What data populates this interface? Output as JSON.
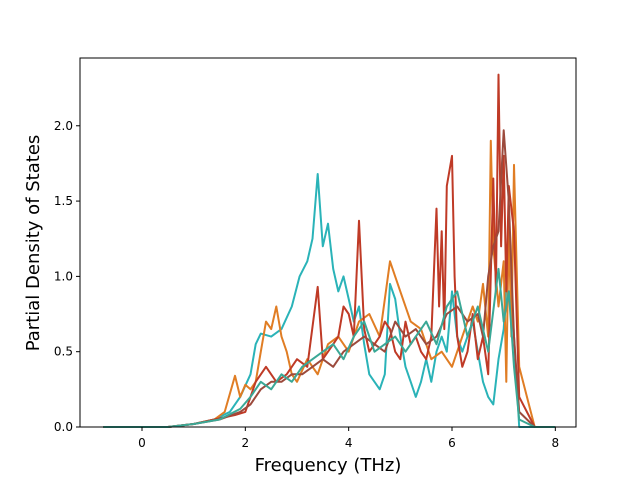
{
  "chart_data": {
    "type": "line",
    "title": "",
    "xlabel": "Frequency (THz)",
    "ylabel": "Partial Density of States",
    "xlim": [
      -1.2,
      8.4
    ],
    "ylim": [
      0.0,
      2.45
    ],
    "xticks": [
      0,
      2,
      4,
      6,
      8
    ],
    "yticks": [
      0.0,
      0.5,
      1.0,
      1.5,
      2.0
    ],
    "xtick_labels": [
      "0",
      "2",
      "4",
      "6",
      "8"
    ],
    "ytick_labels": [
      "0.0",
      "0.5",
      "1.0",
      "1.5",
      "2.0"
    ],
    "grid": false,
    "legend": "none",
    "series": [
      {
        "color": "#2ab3b8",
        "x": [
          -0.75,
          0.0,
          0.5,
          1.0,
          1.4,
          1.7,
          1.9,
          2.1,
          2.2,
          2.3,
          2.5,
          2.7,
          2.9,
          3.05,
          3.2,
          3.3,
          3.4,
          3.5,
          3.6,
          3.7,
          3.8,
          3.9,
          4.0,
          4.1,
          4.2,
          4.3,
          4.4,
          4.5,
          4.6,
          4.7,
          4.8,
          4.9,
          5.0,
          5.1,
          5.2,
          5.3,
          5.4,
          5.5,
          5.6,
          5.7,
          5.8,
          5.9,
          6.0,
          6.1,
          6.2,
          6.3,
          6.4,
          6.5,
          6.6,
          6.7,
          6.8,
          6.9,
          7.0,
          7.1,
          7.2,
          7.3,
          7.6,
          8.0
        ],
        "y": [
          0.0,
          0.0,
          0.0,
          0.02,
          0.05,
          0.1,
          0.2,
          0.35,
          0.55,
          0.62,
          0.6,
          0.65,
          0.8,
          1.0,
          1.1,
          1.25,
          1.68,
          1.2,
          1.35,
          1.05,
          0.9,
          1.0,
          0.85,
          0.7,
          0.8,
          0.55,
          0.35,
          0.3,
          0.25,
          0.35,
          0.95,
          0.85,
          0.6,
          0.4,
          0.3,
          0.2,
          0.3,
          0.45,
          0.3,
          0.5,
          0.6,
          0.5,
          0.9,
          0.6,
          0.5,
          0.6,
          0.7,
          0.5,
          0.3,
          0.2,
          0.15,
          0.45,
          0.65,
          1.2,
          0.6,
          0.0,
          0.0,
          0.0
        ]
      },
      {
        "color": "#e07d24",
        "x": [
          -0.75,
          0.0,
          0.5,
          1.0,
          1.4,
          1.6,
          1.8,
          1.9,
          2.0,
          2.1,
          2.2,
          2.3,
          2.4,
          2.5,
          2.6,
          2.7,
          2.8,
          2.9,
          3.0,
          3.2,
          3.4,
          3.6,
          3.8,
          4.0,
          4.2,
          4.4,
          4.6,
          4.8,
          5.0,
          5.2,
          5.4,
          5.6,
          5.8,
          6.0,
          6.2,
          6.4,
          6.5,
          6.6,
          6.7,
          6.75,
          6.8,
          6.9,
          7.0,
          7.05,
          7.1,
          7.15,
          7.2,
          7.3,
          7.6,
          8.0
        ],
        "y": [
          0.0,
          0.0,
          0.0,
          0.02,
          0.05,
          0.1,
          0.34,
          0.2,
          0.28,
          0.25,
          0.3,
          0.5,
          0.7,
          0.65,
          0.8,
          0.6,
          0.5,
          0.35,
          0.3,
          0.45,
          0.35,
          0.55,
          0.6,
          0.5,
          0.7,
          0.75,
          0.6,
          1.1,
          0.9,
          0.7,
          0.65,
          0.45,
          0.5,
          0.4,
          0.6,
          0.8,
          0.7,
          0.95,
          0.6,
          1.9,
          1.2,
          0.8,
          1.1,
          0.3,
          1.35,
          0.6,
          1.74,
          0.4,
          0.0,
          0.0
        ]
      },
      {
        "color": "#bf3a26",
        "x": [
          -0.75,
          0.0,
          0.5,
          1.0,
          1.4,
          1.8,
          2.0,
          2.2,
          2.4,
          2.6,
          2.8,
          3.0,
          3.2,
          3.4,
          3.5,
          3.6,
          3.7,
          3.8,
          3.9,
          4.0,
          4.1,
          4.2,
          4.3,
          4.4,
          4.5,
          4.6,
          4.7,
          4.8,
          4.9,
          5.0,
          5.1,
          5.2,
          5.3,
          5.4,
          5.5,
          5.6,
          5.7,
          5.75,
          5.8,
          5.85,
          5.9,
          6.0,
          6.05,
          6.1,
          6.2,
          6.3,
          6.4,
          6.5,
          6.6,
          6.7,
          6.8,
          6.85,
          6.9,
          6.95,
          7.0,
          7.05,
          7.1,
          7.2,
          7.3,
          7.6,
          8.0
        ],
        "y": [
          0.0,
          0.0,
          0.0,
          0.02,
          0.05,
          0.08,
          0.1,
          0.3,
          0.4,
          0.3,
          0.35,
          0.45,
          0.4,
          0.93,
          0.45,
          0.5,
          0.55,
          0.6,
          0.8,
          0.75,
          0.6,
          1.37,
          0.65,
          0.5,
          0.55,
          0.6,
          0.7,
          0.65,
          0.5,
          0.45,
          0.7,
          0.55,
          0.6,
          0.5,
          0.45,
          0.6,
          1.45,
          0.8,
          1.3,
          0.65,
          1.6,
          1.8,
          1.0,
          0.6,
          0.4,
          0.5,
          0.75,
          0.45,
          0.6,
          0.35,
          1.65,
          0.9,
          2.34,
          1.2,
          1.8,
          0.9,
          1.6,
          1.3,
          0.2,
          0.0,
          0.0
        ]
      },
      {
        "color": "#9c4a3c",
        "x": [
          -0.75,
          0.0,
          0.5,
          1.0,
          1.5,
          1.9,
          2.1,
          2.3,
          2.5,
          2.7,
          2.9,
          3.1,
          3.3,
          3.5,
          3.7,
          3.9,
          4.1,
          4.3,
          4.5,
          4.7,
          4.9,
          5.1,
          5.3,
          5.5,
          5.7,
          5.9,
          6.1,
          6.3,
          6.5,
          6.6,
          6.7,
          6.8,
          6.9,
          7.0,
          7.1,
          7.2,
          7.3,
          7.6,
          8.0
        ],
        "y": [
          0.0,
          0.0,
          0.0,
          0.02,
          0.05,
          0.1,
          0.15,
          0.25,
          0.3,
          0.3,
          0.35,
          0.35,
          0.4,
          0.45,
          0.4,
          0.5,
          0.55,
          0.6,
          0.55,
          0.5,
          0.7,
          0.6,
          0.65,
          0.55,
          0.6,
          0.75,
          0.8,
          0.7,
          0.75,
          0.6,
          1.0,
          1.2,
          1.3,
          1.97,
          1.5,
          0.6,
          0.1,
          0.0,
          0.0
        ]
      },
      {
        "color": "#3aa896",
        "x": [
          -0.75,
          0.0,
          0.5,
          1.0,
          1.5,
          1.9,
          2.1,
          2.3,
          2.5,
          2.7,
          2.9,
          3.1,
          3.3,
          3.5,
          3.7,
          3.9,
          4.1,
          4.3,
          4.5,
          4.7,
          4.9,
          5.1,
          5.3,
          5.5,
          5.7,
          5.9,
          6.1,
          6.3,
          6.5,
          6.7,
          6.9,
          7.0,
          7.1,
          7.2,
          7.3,
          7.6,
          8.0
        ],
        "y": [
          0.0,
          0.0,
          0.0,
          0.02,
          0.05,
          0.12,
          0.2,
          0.3,
          0.25,
          0.35,
          0.3,
          0.4,
          0.45,
          0.5,
          0.55,
          0.45,
          0.6,
          0.7,
          0.5,
          0.55,
          0.6,
          0.5,
          0.6,
          0.7,
          0.55,
          0.8,
          0.9,
          0.6,
          0.8,
          0.5,
          1.05,
          0.7,
          0.9,
          0.4,
          0.05,
          0.0,
          0.0
        ]
      }
    ]
  }
}
